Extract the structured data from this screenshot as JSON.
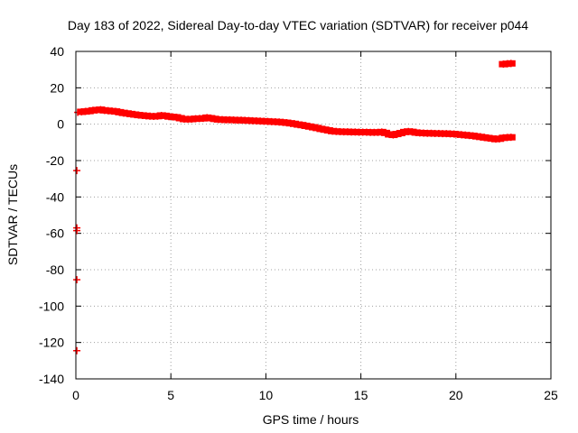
{
  "chart_data": {
    "type": "scatter",
    "title": "Day 183 of 2022, Sidereal Day-to-day VTEC variation (SDTVAR) for receiver p044",
    "xlabel": "GPS time / hours",
    "ylabel": "SDTVAR / TECUs",
    "xlim": [
      0,
      25
    ],
    "ylim": [
      -140,
      40
    ],
    "xticks": [
      "0",
      "5",
      "10",
      "15",
      "20",
      "25"
    ],
    "yticks": [
      "40",
      "20",
      "0",
      "-20",
      "-40",
      "-60",
      "-80",
      "-100",
      "-120",
      "-140"
    ],
    "grid": true,
    "series": [
      {
        "name": "SDTVAR",
        "color": "#ff0000",
        "x": [
          0.1,
          0.3,
          0.5,
          0.7,
          0.9,
          1.1,
          1.3,
          1.5,
          1.7,
          1.9,
          2.1,
          2.3,
          2.5,
          2.7,
          2.9,
          3.1,
          3.3,
          3.5,
          3.7,
          3.9,
          4.1,
          4.3,
          4.5,
          4.7,
          4.9,
          5.1,
          5.3,
          5.5,
          5.7,
          5.9,
          6.1,
          6.3,
          6.5,
          6.7,
          6.9,
          7.1,
          7.3,
          7.5,
          7.7,
          7.9,
          8.1,
          8.3,
          8.5,
          8.7,
          8.9,
          9.1,
          9.3,
          9.5,
          9.7,
          9.9,
          10.1,
          10.3,
          10.5,
          10.7,
          10.9,
          11.1,
          11.3,
          11.5,
          11.7,
          11.9,
          12.1,
          12.3,
          12.5,
          12.7,
          12.9,
          13.1,
          13.3,
          13.5,
          13.7,
          13.9,
          14.1,
          14.3,
          14.5,
          14.7,
          14.9,
          15.1,
          15.3,
          15.5,
          15.7,
          15.9,
          16.1,
          16.3,
          16.5,
          16.7,
          16.9,
          17.1,
          17.3,
          17.5,
          17.7,
          17.9,
          18.1,
          18.3,
          18.5,
          18.7,
          18.9,
          19.1,
          19.3,
          19.5,
          19.7,
          19.9,
          20.1,
          20.3,
          20.5,
          20.7,
          20.9,
          21.1,
          21.3,
          21.5,
          21.7,
          21.9,
          22.1,
          22.3,
          22.5,
          22.7,
          22.9,
          22.5,
          22.7,
          22.9,
          0.05,
          0.05,
          0.05,
          0.05,
          0.05
        ],
        "y": [
          6.5,
          6.8,
          7.0,
          7.2,
          7.6,
          7.8,
          8.0,
          7.6,
          7.4,
          7.2,
          7.0,
          6.6,
          6.2,
          5.9,
          5.6,
          5.3,
          5.0,
          4.8,
          4.6,
          4.4,
          4.3,
          4.4,
          4.8,
          4.6,
          4.2,
          4.0,
          3.8,
          3.3,
          2.8,
          2.7,
          2.8,
          3.0,
          3.1,
          3.2,
          3.6,
          3.3,
          2.9,
          2.6,
          2.5,
          2.4,
          2.4,
          2.3,
          2.2,
          2.2,
          2.1,
          2.0,
          1.9,
          1.8,
          1.7,
          1.6,
          1.5,
          1.4,
          1.3,
          1.2,
          1.0,
          0.8,
          0.5,
          0.2,
          -0.2,
          -0.5,
          -0.9,
          -1.3,
          -1.7,
          -2.1,
          -2.6,
          -3.0,
          -3.4,
          -3.8,
          -4.0,
          -4.1,
          -4.2,
          -4.2,
          -4.3,
          -4.3,
          -4.4,
          -4.4,
          -4.4,
          -4.5,
          -4.5,
          -4.5,
          -4.3,
          -4.8,
          -5.6,
          -5.9,
          -5.4,
          -4.9,
          -4.3,
          -4.0,
          -4.2,
          -4.6,
          -4.8,
          -4.9,
          -5.0,
          -5.0,
          -5.1,
          -5.1,
          -5.2,
          -5.2,
          -5.3,
          -5.4,
          -5.6,
          -5.8,
          -6.0,
          -6.2,
          -6.4,
          -6.7,
          -7.0,
          -7.3,
          -7.6,
          -7.9,
          -8.2,
          -8.0,
          -7.5,
          -7.3,
          -7.2,
          33.0,
          33.2,
          33.4,
          -25.5,
          -57,
          -58.5,
          -85.5,
          -124.5
        ]
      }
    ]
  }
}
